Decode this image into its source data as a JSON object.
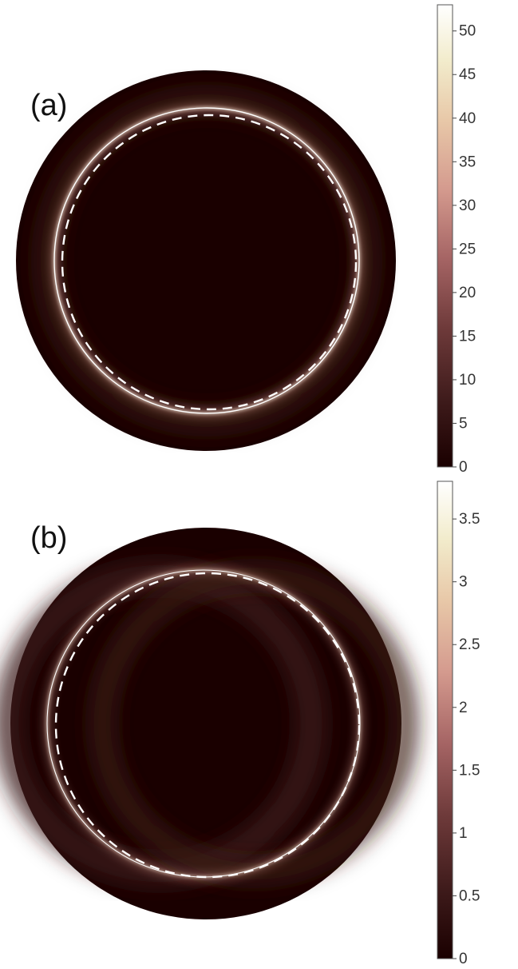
{
  "chart_data": [
    {
      "type": "heatmap",
      "panel_label": "(a)",
      "colormap": [
        "#1a0000",
        "#3d1a1a",
        "#6e3a3a",
        "#a56464",
        "#d49a8e",
        "#e8c8a8",
        "#f2eccc",
        "#ffffff"
      ],
      "colorbar": {
        "min": 0,
        "max": 53,
        "ticks": [
          0,
          5,
          10,
          15,
          20,
          25,
          30,
          35,
          40,
          45,
          50
        ]
      },
      "peak_value": 53,
      "background_color": "#1a0000"
    },
    {
      "type": "heatmap",
      "panel_label": "(b)",
      "colormap": [
        "#1a0000",
        "#3d1a1a",
        "#6e3a3a",
        "#a56464",
        "#d49a8e",
        "#e8c8a8",
        "#f2eccc",
        "#ffffff"
      ],
      "colorbar": {
        "min": 0,
        "max": 3.8,
        "ticks": [
          0,
          0.5,
          1,
          1.5,
          2,
          2.5,
          3,
          3.5
        ]
      },
      "peak_value": 3.8,
      "background_color": "#1a0000"
    }
  ]
}
